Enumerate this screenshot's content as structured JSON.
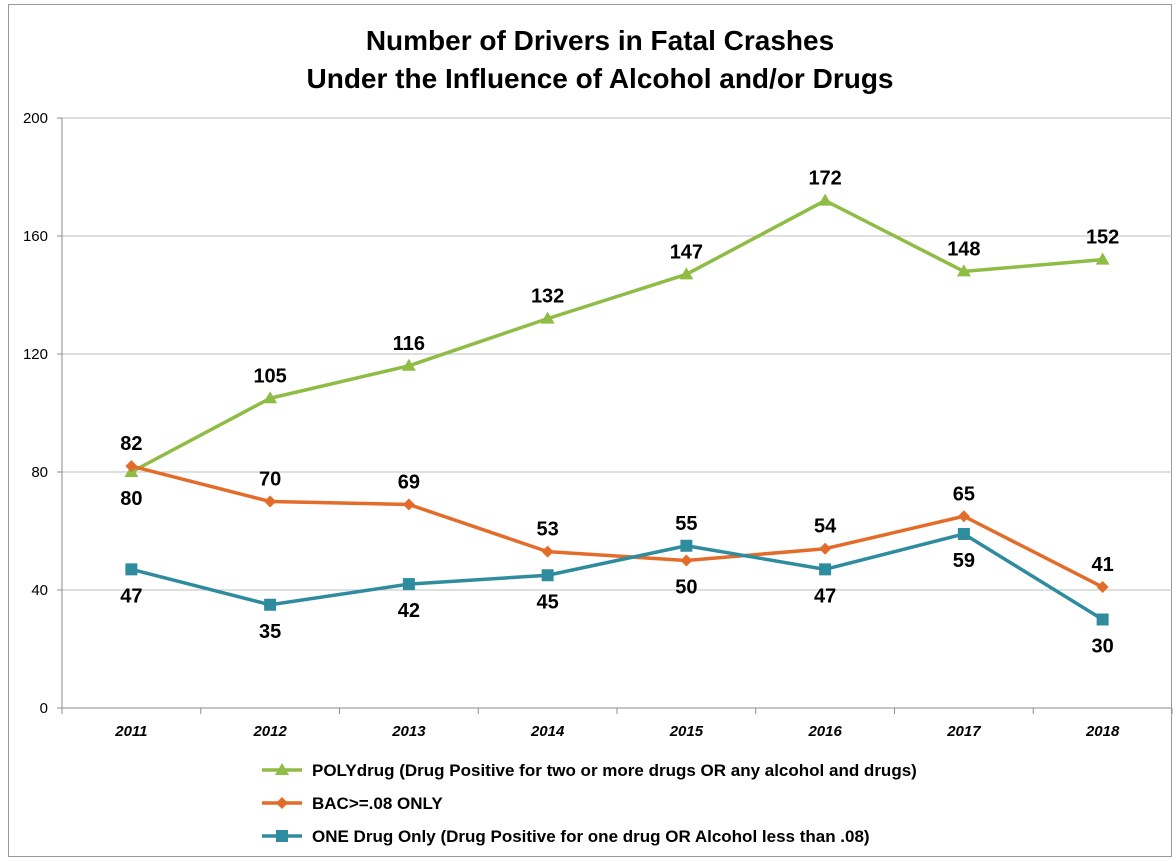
{
  "chart_data": {
    "type": "line",
    "title": [
      "Number of Drivers in Fatal Crashes",
      "Under the Influence of Alcohol and/or Drugs"
    ],
    "categories": [
      "2011",
      "2012",
      "2013",
      "2014",
      "2015",
      "2016",
      "2017",
      "2018"
    ],
    "ylim": [
      0,
      200
    ],
    "yticks": [
      "0",
      "40",
      "80",
      "120",
      "160",
      "200"
    ],
    "grid": true,
    "legend_position": "bottom",
    "series": [
      {
        "name": "POLYdrug (Drug Positive for two or more drugs OR any alcohol and drugs)",
        "values": [
          80,
          105,
          116,
          132,
          147,
          172,
          148,
          152
        ],
        "color": "#8fbc45",
        "marker": "triangle",
        "label_position": [
          "below",
          "above",
          "above",
          "above",
          "above",
          "above",
          "above",
          "above"
        ]
      },
      {
        "name": "BAC>=.08 ONLY",
        "values": [
          82,
          70,
          69,
          53,
          50,
          54,
          65,
          41
        ],
        "color": "#e46c2a",
        "marker": "diamond",
        "label_position": [
          "above",
          "above",
          "above",
          "above",
          "below",
          "above",
          "above",
          "above"
        ]
      },
      {
        "name": "ONE Drug Only (Drug Positive for one drug OR Alcohol less than .08)",
        "values": [
          47,
          35,
          42,
          45,
          55,
          47,
          59,
          30
        ],
        "color": "#2f8c9e",
        "marker": "square",
        "label_position": [
          "below",
          "below",
          "below",
          "below",
          "above",
          "below",
          "below",
          "below"
        ]
      }
    ]
  }
}
